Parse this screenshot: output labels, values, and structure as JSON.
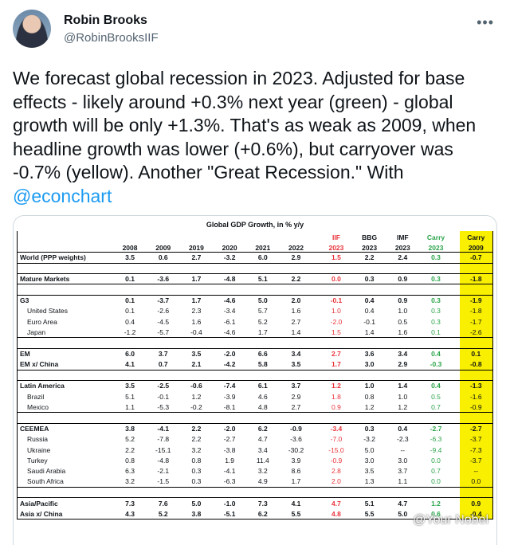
{
  "author": {
    "name": "Robin Brooks",
    "handle": "@RobinBrooksIIF"
  },
  "tweet": {
    "text": "We forecast global recession in 2023. Adjusted for base effects - likely around +0.3% next year (green) - global growth will be only +1.3%. That's as weak as 2009, when headline growth was lower (+0.6%), but carryover was -0.7% (yellow). Another \"Great Recession.\" With ",
    "mention": "@econchart"
  },
  "more_icon": "ellipsis-icon",
  "chart_data": {
    "type": "table",
    "title": "Global GDP Growth, in % y/y",
    "columns": [
      {
        "top": "",
        "bottom": "2008"
      },
      {
        "top": "",
        "bottom": "2009"
      },
      {
        "top": "",
        "bottom": "2019"
      },
      {
        "top": "",
        "bottom": "2020"
      },
      {
        "top": "",
        "bottom": "2021"
      },
      {
        "top": "",
        "bottom": "2022"
      },
      {
        "top": "IIF",
        "bottom": "2023"
      },
      {
        "top": "BBG",
        "bottom": "2023"
      },
      {
        "top": "IMF",
        "bottom": "2023"
      },
      {
        "top": "Carry",
        "bottom": "2023"
      },
      {
        "top": "Carry",
        "bottom": "2009"
      }
    ],
    "rows": [
      {
        "label": "World (PPP weights)",
        "values": [
          "3.5",
          "0.6",
          "2.7",
          "-3.2",
          "6.0",
          "2.9",
          "1.5",
          "2.2",
          "2.4",
          "0.3",
          "-0.7"
        ]
      },
      {
        "label": "Mature Markets",
        "values": [
          "0.1",
          "-3.6",
          "1.7",
          "-4.8",
          "5.1",
          "2.2",
          "0.0",
          "0.3",
          "0.9",
          "0.3",
          "-1.8"
        ]
      },
      {
        "label": "G3",
        "values": [
          "0.1",
          "-3.7",
          "1.7",
          "-4.6",
          "5.0",
          "2.0",
          "-0.1",
          "0.4",
          "0.9",
          "0.3",
          "-1.9"
        ]
      },
      {
        "label": "United States",
        "values": [
          "0.1",
          "-2.6",
          "2.3",
          "-3.4",
          "5.7",
          "1.6",
          "1.0",
          "0.4",
          "1.0",
          "0.3",
          "-1.8"
        ]
      },
      {
        "label": "Euro Area",
        "values": [
          "0.4",
          "-4.5",
          "1.6",
          "-6.1",
          "5.2",
          "2.7",
          "-2.0",
          "-0.1",
          "0.5",
          "0.3",
          "-1.7"
        ]
      },
      {
        "label": "Japan",
        "values": [
          "-1.2",
          "-5.7",
          "-0.4",
          "-4.6",
          "1.7",
          "1.4",
          "1.5",
          "1.4",
          "1.6",
          "0.1",
          "-2.6"
        ]
      },
      {
        "label": "EM",
        "values": [
          "6.0",
          "3.7",
          "3.5",
          "-2.0",
          "6.6",
          "3.4",
          "2.7",
          "3.6",
          "3.4",
          "0.4",
          "0.1"
        ]
      },
      {
        "label": "EM x/ China",
        "values": [
          "4.1",
          "0.7",
          "2.1",
          "-4.2",
          "5.8",
          "3.5",
          "1.7",
          "3.0",
          "2.9",
          "-0.3",
          "-0.8"
        ]
      },
      {
        "label": "Latin America",
        "values": [
          "3.5",
          "-2.5",
          "-0.6",
          "-7.4",
          "6.1",
          "3.7",
          "1.2",
          "1.0",
          "1.4",
          "0.4",
          "-1.3"
        ]
      },
      {
        "label": "Brazil",
        "values": [
          "5.1",
          "-0.1",
          "1.2",
          "-3.9",
          "4.6",
          "2.9",
          "1.8",
          "0.8",
          "1.0",
          "0.5",
          "-1.6"
        ]
      },
      {
        "label": "Mexico",
        "values": [
          "1.1",
          "-5.3",
          "-0.2",
          "-8.1",
          "4.8",
          "2.7",
          "0.9",
          "1.2",
          "1.2",
          "0.7",
          "-0.9"
        ]
      },
      {
        "label": "CEEMEA",
        "values": [
          "3.8",
          "-4.1",
          "2.2",
          "-2.0",
          "6.2",
          "-0.9",
          "-3.4",
          "0.3",
          "0.4",
          "-2.7",
          "-2.7"
        ]
      },
      {
        "label": "Russia",
        "values": [
          "5.2",
          "-7.8",
          "2.2",
          "-2.7",
          "4.7",
          "-3.6",
          "-7.0",
          "-3.2",
          "-2.3",
          "-6.3",
          "-3.7"
        ]
      },
      {
        "label": "Ukraine",
        "values": [
          "2.2",
          "-15.1",
          "3.2",
          "-3.8",
          "3.4",
          "-30.2",
          "-15.0",
          "5.0",
          "--",
          "-9.4",
          "-7.3"
        ]
      },
      {
        "label": "Turkey",
        "values": [
          "0.8",
          "-4.8",
          "0.8",
          "1.9",
          "11.4",
          "3.9",
          "-0.9",
          "3.0",
          "3.0",
          "0.0",
          "-3.7"
        ]
      },
      {
        "label": "Saudi Arabia",
        "values": [
          "6.3",
          "-2.1",
          "0.3",
          "-4.1",
          "3.2",
          "8.6",
          "2.8",
          "3.5",
          "3.7",
          "0.7",
          "--"
        ]
      },
      {
        "label": "South Africa",
        "values": [
          "3.2",
          "-1.5",
          "0.3",
          "-6.3",
          "4.9",
          "1.7",
          "2.0",
          "1.3",
          "1.1",
          "0.0",
          "0.0"
        ]
      },
      {
        "label": "Asia/Pacific",
        "values": [
          "7.3",
          "7.6",
          "5.0",
          "-1.0",
          "7.3",
          "4.1",
          "4.7",
          "5.1",
          "4.7",
          "1.2",
          "0.9"
        ]
      },
      {
        "label": "Asia x/ China",
        "values": [
          "4.3",
          "5.2",
          "3.8",
          "-5.1",
          "6.2",
          "5.5",
          "4.8",
          "5.5",
          "5.0",
          "0.6",
          "-0.4"
        ]
      }
    ]
  },
  "watermark": "@Your Nobel"
}
